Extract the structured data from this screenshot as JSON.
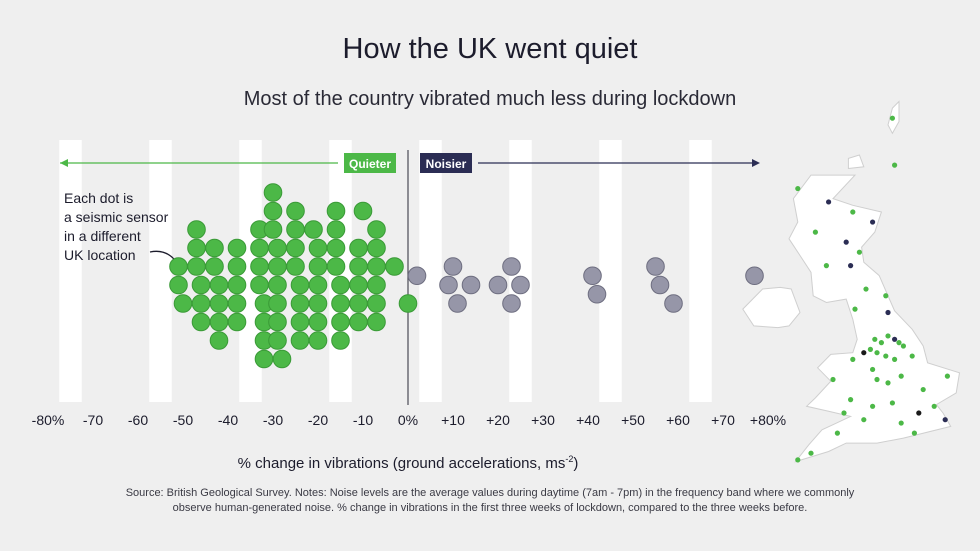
{
  "chart_data": {
    "type": "scatter",
    "title": "How the UK went quiet",
    "subtitle": "Most of the country vibrated much less during lockdown",
    "xlabel": "% change in vibrations (ground accelerations, ms",
    "xlabel_sup": "-2",
    "xlabel_close": ")",
    "xlim": [
      -80,
      80
    ],
    "ticks": [
      -80,
      -70,
      -60,
      -50,
      -40,
      -30,
      -20,
      -10,
      0,
      10,
      20,
      30,
      40,
      50,
      60,
      70,
      80
    ],
    "tick_labels": [
      "-80%",
      "-70",
      "-60",
      "-50",
      "-40",
      "-30",
      "-20",
      "-10",
      "0%",
      "+10",
      "+20",
      "+30",
      "+40",
      "+50",
      "+60",
      "+70",
      "+80%"
    ],
    "quieter_label": "Quieter",
    "noisier_label": "Noisier",
    "annotation": [
      "Each dot is",
      "a seismic sensor",
      "in a different",
      "UK location"
    ],
    "quieter_color": "#4cb847",
    "noisier_color": "#9696a8",
    "sensors": [
      {
        "x": -51,
        "y": 0
      },
      {
        "x": -51,
        "y": 1
      },
      {
        "x": -50,
        "y": -1
      },
      {
        "x": -47,
        "y": 3
      },
      {
        "x": -47,
        "y": 2
      },
      {
        "x": -47,
        "y": 1
      },
      {
        "x": -46,
        "y": 0
      },
      {
        "x": -46,
        "y": -1
      },
      {
        "x": -46,
        "y": -2
      },
      {
        "x": -43,
        "y": 2
      },
      {
        "x": -43,
        "y": 1
      },
      {
        "x": -42,
        "y": 0
      },
      {
        "x": -42,
        "y": -1
      },
      {
        "x": -42,
        "y": -2
      },
      {
        "x": -42,
        "y": -3
      },
      {
        "x": -38,
        "y": 2
      },
      {
        "x": -38,
        "y": 1
      },
      {
        "x": -38,
        "y": 0
      },
      {
        "x": -38,
        "y": -1
      },
      {
        "x": -38,
        "y": -2
      },
      {
        "x": -33,
        "y": 3
      },
      {
        "x": -33,
        "y": 2
      },
      {
        "x": -33,
        "y": 1
      },
      {
        "x": -33,
        "y": 0
      },
      {
        "x": -32,
        "y": -1
      },
      {
        "x": -32,
        "y": -2
      },
      {
        "x": -32,
        "y": -3
      },
      {
        "x": -32,
        "y": -4
      },
      {
        "x": -30,
        "y": 5
      },
      {
        "x": -30,
        "y": 4
      },
      {
        "x": -30,
        "y": 3
      },
      {
        "x": -29,
        "y": 2
      },
      {
        "x": -29,
        "y": 1
      },
      {
        "x": -29,
        "y": 0
      },
      {
        "x": -29,
        "y": -1
      },
      {
        "x": -29,
        "y": -2
      },
      {
        "x": -29,
        "y": -3
      },
      {
        "x": -28,
        "y": -4
      },
      {
        "x": -25,
        "y": 4
      },
      {
        "x": -25,
        "y": 3
      },
      {
        "x": -25,
        "y": 2
      },
      {
        "x": -25,
        "y": 1
      },
      {
        "x": -24,
        "y": 0
      },
      {
        "x": -24,
        "y": -1
      },
      {
        "x": -24,
        "y": -2
      },
      {
        "x": -24,
        "y": -3
      },
      {
        "x": -21,
        "y": 3
      },
      {
        "x": -20,
        "y": 2
      },
      {
        "x": -20,
        "y": 1
      },
      {
        "x": -20,
        "y": 0
      },
      {
        "x": -20,
        "y": -1
      },
      {
        "x": -20,
        "y": -2
      },
      {
        "x": -20,
        "y": -3
      },
      {
        "x": -16,
        "y": 4
      },
      {
        "x": -16,
        "y": 3
      },
      {
        "x": -16,
        "y": 2
      },
      {
        "x": -16,
        "y": 1
      },
      {
        "x": -15,
        "y": 0
      },
      {
        "x": -15,
        "y": -1
      },
      {
        "x": -15,
        "y": -2
      },
      {
        "x": -15,
        "y": -3
      },
      {
        "x": -11,
        "y": 2
      },
      {
        "x": -11,
        "y": 1
      },
      {
        "x": -11,
        "y": 0
      },
      {
        "x": -11,
        "y": -1
      },
      {
        "x": -11,
        "y": -2
      },
      {
        "x": -10,
        "y": 4
      },
      {
        "x": -7,
        "y": 3
      },
      {
        "x": -7,
        "y": 2
      },
      {
        "x": -7,
        "y": 1
      },
      {
        "x": -7,
        "y": 0
      },
      {
        "x": -7,
        "y": -1
      },
      {
        "x": -7,
        "y": -2
      },
      {
        "x": -3,
        "y": 1
      },
      {
        "x": 0,
        "y": -1
      },
      {
        "x": 2,
        "y": 0.5
      },
      {
        "x": 10,
        "y": 1
      },
      {
        "x": 9,
        "y": 0
      },
      {
        "x": 14,
        "y": 0
      },
      {
        "x": 11,
        "y": -1
      },
      {
        "x": 23,
        "y": 1
      },
      {
        "x": 20,
        "y": 0
      },
      {
        "x": 25,
        "y": 0
      },
      {
        "x": 23,
        "y": -1
      },
      {
        "x": 41,
        "y": 0.5
      },
      {
        "x": 42,
        "y": -0.5
      },
      {
        "x": 55,
        "y": 1
      },
      {
        "x": 56,
        "y": 0
      },
      {
        "x": 59,
        "y": -1
      },
      {
        "x": 77,
        "y": 0.5
      }
    ],
    "map_dots": [
      {
        "lon": -5.6,
        "lat": 58.2,
        "color": "#4cb847"
      },
      {
        "lon": -4.2,
        "lat": 57.8,
        "color": "#2b2d54"
      },
      {
        "lon": -3.1,
        "lat": 57.5,
        "color": "#4cb847"
      },
      {
        "lon": -2.2,
        "lat": 57.2,
        "color": "#2b2d54"
      },
      {
        "lon": -4.8,
        "lat": 56.9,
        "color": "#4cb847"
      },
      {
        "lon": -3.4,
        "lat": 56.6,
        "color": "#2b2d54"
      },
      {
        "lon": -2.8,
        "lat": 56.3,
        "color": "#4cb847"
      },
      {
        "lon": -4.3,
        "lat": 55.9,
        "color": "#4cb847"
      },
      {
        "lon": -3.2,
        "lat": 55.9,
        "color": "#2b2d54"
      },
      {
        "lon": -1.2,
        "lat": 58.9,
        "color": "#4cb847"
      },
      {
        "lon": -1.3,
        "lat": 60.3,
        "color": "#4cb847"
      },
      {
        "lon": -2.5,
        "lat": 55.2,
        "color": "#4cb847"
      },
      {
        "lon": -1.6,
        "lat": 55.0,
        "color": "#4cb847"
      },
      {
        "lon": -3.0,
        "lat": 54.6,
        "color": "#4cb847"
      },
      {
        "lon": -1.5,
        "lat": 54.5,
        "color": "#2b2d54"
      },
      {
        "lon": -2.1,
        "lat": 53.7,
        "color": "#4cb847"
      },
      {
        "lon": -1.8,
        "lat": 53.6,
        "color": "#4cb847"
      },
      {
        "lon": -1.5,
        "lat": 53.8,
        "color": "#4cb847"
      },
      {
        "lon": -1.2,
        "lat": 53.7,
        "color": "#2b2d54"
      },
      {
        "lon": -1.0,
        "lat": 53.6,
        "color": "#4cb847"
      },
      {
        "lon": -0.8,
        "lat": 53.5,
        "color": "#4cb847"
      },
      {
        "lon": -2.3,
        "lat": 53.4,
        "color": "#4cb847"
      },
      {
        "lon": -2.6,
        "lat": 53.3,
        "color": "#1a1a1a"
      },
      {
        "lon": -2.0,
        "lat": 53.3,
        "color": "#4cb847"
      },
      {
        "lon": -1.6,
        "lat": 53.2,
        "color": "#4cb847"
      },
      {
        "lon": -1.2,
        "lat": 53.1,
        "color": "#4cb847"
      },
      {
        "lon": -3.1,
        "lat": 53.1,
        "color": "#4cb847"
      },
      {
        "lon": -2.2,
        "lat": 52.8,
        "color": "#4cb847"
      },
      {
        "lon": -0.4,
        "lat": 53.2,
        "color": "#4cb847"
      },
      {
        "lon": -4.0,
        "lat": 52.5,
        "color": "#4cb847"
      },
      {
        "lon": -2.0,
        "lat": 52.5,
        "color": "#4cb847"
      },
      {
        "lon": -1.5,
        "lat": 52.4,
        "color": "#4cb847"
      },
      {
        "lon": -0.9,
        "lat": 52.6,
        "color": "#4cb847"
      },
      {
        "lon": 0.1,
        "lat": 52.2,
        "color": "#4cb847"
      },
      {
        "lon": 1.2,
        "lat": 52.6,
        "color": "#4cb847"
      },
      {
        "lon": -3.2,
        "lat": 51.9,
        "color": "#4cb847"
      },
      {
        "lon": -2.2,
        "lat": 51.7,
        "color": "#4cb847"
      },
      {
        "lon": -1.3,
        "lat": 51.8,
        "color": "#4cb847"
      },
      {
        "lon": -0.1,
        "lat": 51.5,
        "color": "#1a1a1a"
      },
      {
        "lon": 0.6,
        "lat": 51.7,
        "color": "#4cb847"
      },
      {
        "lon": 1.1,
        "lat": 51.3,
        "color": "#2b2d54"
      },
      {
        "lon": -0.9,
        "lat": 51.2,
        "color": "#4cb847"
      },
      {
        "lon": -2.6,
        "lat": 51.3,
        "color": "#4cb847"
      },
      {
        "lon": -3.8,
        "lat": 50.9,
        "color": "#4cb847"
      },
      {
        "lon": -5.0,
        "lat": 50.3,
        "color": "#4cb847"
      },
      {
        "lon": -0.3,
        "lat": 50.9,
        "color": "#4cb847"
      },
      {
        "lon": -5.6,
        "lat": 50.1,
        "color": "#4cb847"
      },
      {
        "lon": -3.5,
        "lat": 51.5,
        "color": "#4cb847"
      }
    ]
  },
  "source": [
    "Source: British Geological Survey. Notes: Noise levels are the average values during daytime (7am - 7pm) in the frequency band where we commonly",
    "observe human-generated noise. % change in vibrations in the first three weeks of lockdown, compared to the three weeks before."
  ]
}
